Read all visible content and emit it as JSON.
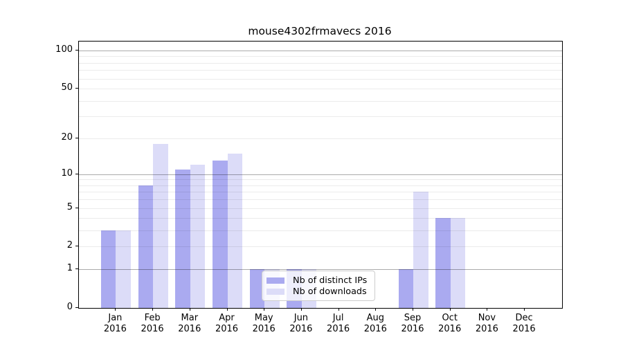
{
  "chart_data": {
    "type": "bar",
    "title": "mouse4302frmavecs 2016",
    "categories": [
      {
        "month": "Jan",
        "year": "2016"
      },
      {
        "month": "Feb",
        "year": "2016"
      },
      {
        "month": "Mar",
        "year": "2016"
      },
      {
        "month": "Apr",
        "year": "2016"
      },
      {
        "month": "May",
        "year": "2016"
      },
      {
        "month": "Jun",
        "year": "2016"
      },
      {
        "month": "Jul",
        "year": "2016"
      },
      {
        "month": "Aug",
        "year": "2016"
      },
      {
        "month": "Sep",
        "year": "2016"
      },
      {
        "month": "Oct",
        "year": "2016"
      },
      {
        "month": "Nov",
        "year": "2016"
      },
      {
        "month": "Dec",
        "year": "2016"
      }
    ],
    "series": [
      {
        "name": "Nb of distinct IPs",
        "color": "#aaaaf0",
        "values": [
          3,
          8,
          11,
          13,
          1,
          1,
          0,
          0,
          1,
          4,
          0,
          0
        ]
      },
      {
        "name": "Nb of downloads",
        "color": "#dcdcf8",
        "values": [
          3,
          18,
          12,
          15,
          1,
          1,
          0,
          0,
          7,
          4,
          0,
          0
        ]
      }
    ],
    "yscale": "log1p",
    "ylim": [
      0,
      118
    ],
    "ytick_labels": [
      100,
      50,
      20,
      10,
      5,
      2,
      1,
      0
    ],
    "y_gridlines_major": [
      1,
      10,
      100
    ],
    "y_gridlines_minor": [
      2,
      3,
      4,
      5,
      6,
      7,
      8,
      9,
      20,
      30,
      40,
      50,
      60,
      70,
      80,
      90
    ],
    "grid": true,
    "legend_position": "inside-bottom-center",
    "xlabel": "",
    "ylabel": ""
  }
}
